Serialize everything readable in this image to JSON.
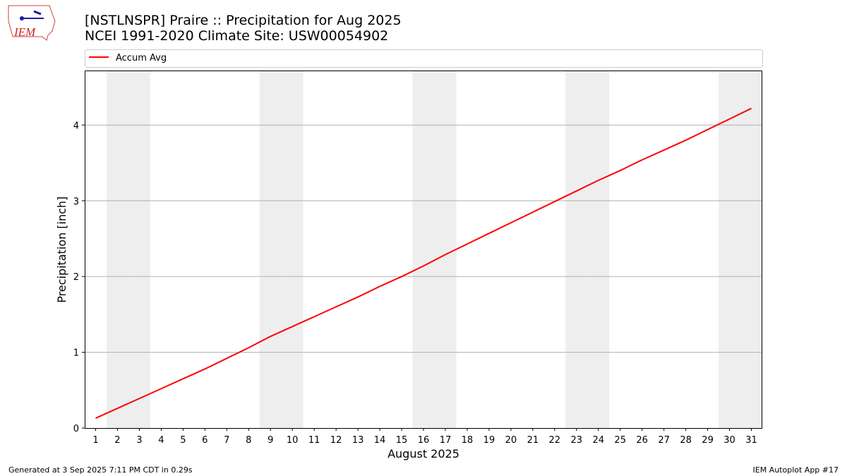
{
  "logo": "IEM",
  "footer": {
    "left": "Generated at 3 Sep 2025 7:11 PM CDT in 0.29s",
    "right": "IEM Autoplot App #17"
  },
  "chart_data": {
    "type": "line",
    "title": "[NSTLNSPR] Praire :: Precipitation for Aug 2025",
    "subtitle": "NCEI 1991-2020 Climate Site: USW00054902",
    "x_label": "August 2025",
    "y_label": "Precipitation [inch]",
    "x": [
      1,
      2,
      3,
      4,
      5,
      6,
      7,
      8,
      9,
      10,
      11,
      12,
      13,
      14,
      15,
      16,
      17,
      18,
      19,
      20,
      21,
      22,
      23,
      24,
      25,
      26,
      27,
      28,
      29,
      30,
      31
    ],
    "series": [
      {
        "name": "Accum Avg",
        "color": "#ff0000",
        "values": [
          0.13,
          0.26,
          0.39,
          0.52,
          0.65,
          0.78,
          0.92,
          1.06,
          1.21,
          1.34,
          1.47,
          1.6,
          1.73,
          1.87,
          2.0,
          2.14,
          2.29,
          2.43,
          2.57,
          2.71,
          2.85,
          2.99,
          3.13,
          3.27,
          3.4,
          3.54,
          3.67,
          3.8,
          3.94,
          4.08,
          4.22
        ]
      }
    ],
    "shaded_days": [
      2,
      3,
      9,
      10,
      16,
      17,
      23,
      24,
      30,
      31
    ],
    "shade_color": "#eeeeee",
    "xlim": [
      0.5,
      31.5
    ],
    "ylim": [
      0,
      4.72
    ],
    "xticks": [
      1,
      2,
      3,
      4,
      5,
      6,
      7,
      8,
      9,
      10,
      11,
      12,
      13,
      14,
      15,
      16,
      17,
      18,
      19,
      20,
      21,
      22,
      23,
      24,
      25,
      26,
      27,
      28,
      29,
      30,
      31
    ],
    "yticks": [
      0,
      1,
      2,
      3,
      4
    ],
    "grid": "y",
    "legend": "top"
  }
}
